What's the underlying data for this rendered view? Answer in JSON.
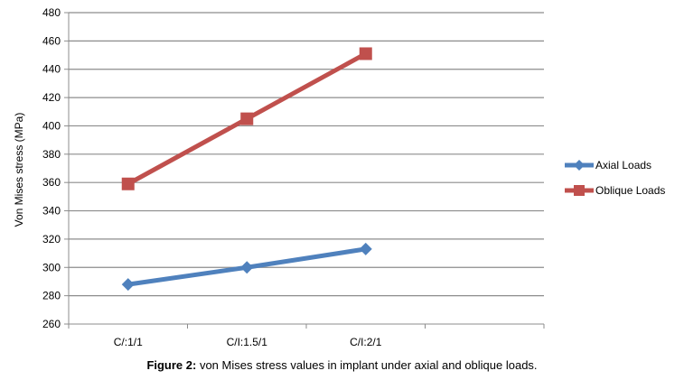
{
  "chart_data": {
    "type": "line",
    "title": "",
    "xlabel": "",
    "ylabel": "Von Mises stress  (MPa)",
    "categories": [
      "C/:1/1",
      "C/I:1.5/1",
      "C/I:2/1"
    ],
    "ylim": [
      260,
      480
    ],
    "yticks": [
      260,
      280,
      300,
      320,
      340,
      360,
      380,
      400,
      420,
      440,
      460,
      480
    ],
    "grid": true,
    "legend": "right",
    "series": [
      {
        "name": "Axial Loads",
        "values": [
          288,
          300,
          313
        ],
        "color": "#4f81bd",
        "marker": "diamond"
      },
      {
        "name": "Oblique Loads",
        "values": [
          359,
          405,
          451
        ],
        "color": "#c0504d",
        "marker": "square"
      }
    ]
  },
  "caption": {
    "label": "Figure 2:",
    "text": " von Mises stress values in implant under axial and oblique loads."
  }
}
